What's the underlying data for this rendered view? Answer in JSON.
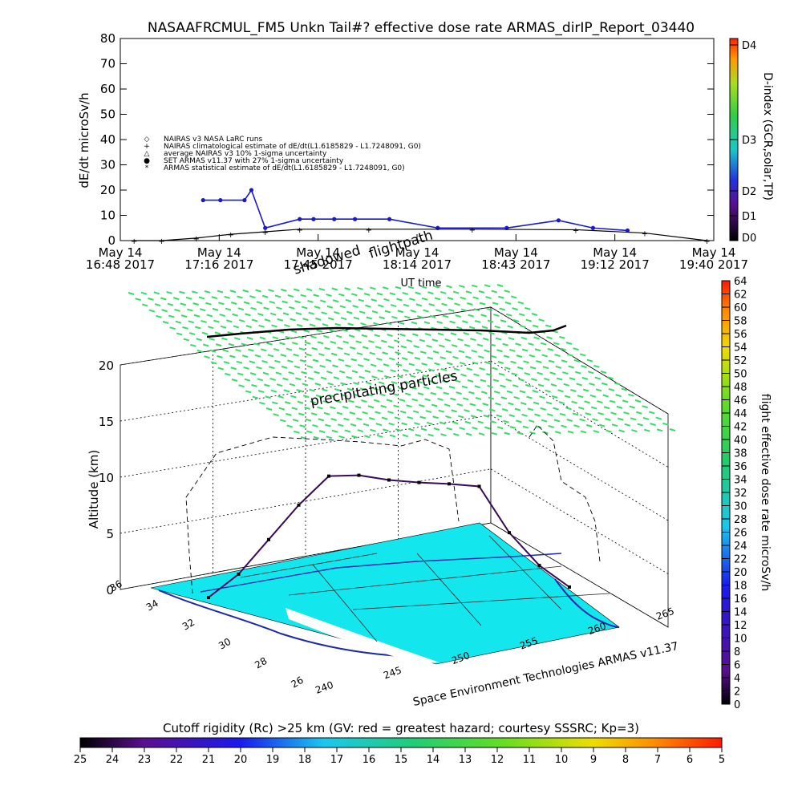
{
  "top_chart": {
    "title": "NASAAFRCMUL_FM5 Unkn Tail#? effective dose rate ARMAS_dirIP_Report_03440",
    "ylabel": "dE/dt microSv/h",
    "xlabel": "UT time",
    "y_ticks": [
      "0",
      "10",
      "20",
      "30",
      "40",
      "50",
      "60",
      "70",
      "80"
    ],
    "x_ticks": [
      {
        "l1": "May 14",
        "l2": "16:48 2017"
      },
      {
        "l1": "May 14",
        "l2": "17:16 2017"
      },
      {
        "l1": "May 14",
        "l2": "17:45 2017"
      },
      {
        "l1": "May 14",
        "l2": "18:14 2017"
      },
      {
        "l1": "May 14",
        "l2": "18:43 2017"
      },
      {
        "l1": "May 14",
        "l2": "19:12 2017"
      },
      {
        "l1": "May 14",
        "l2": "19:40 2017"
      }
    ],
    "legend": [
      {
        "symbol": "◇",
        "text": "NAIRAS v3 NASA LaRC runs"
      },
      {
        "symbol": "+",
        "text": "NAIRAS climatological estimate of dE/dt(L1.6185829 - L1.7248091, G0)"
      },
      {
        "symbol": "△",
        "text": "average NAIRAS v3 10% 1-sigma uncertainty"
      },
      {
        "symbol": "●",
        "text": "SET ARMAS v11.37 with 27% 1-sigma uncertainty"
      },
      {
        "symbol": "*",
        "text": "ARMAS statistical estimate of dE/dt(L1.6185829 - L1.7248091, G0)"
      }
    ],
    "dindex_label": "D-index (GCR,solar,TP)",
    "dindex_ticks": [
      "D0",
      "D1",
      "D2",
      "D3",
      "D4"
    ],
    "overlay_labels": [
      "shadowed",
      "flightpath"
    ],
    "colors": {
      "armas": "#1a1acc",
      "nairas": "#000000"
    }
  },
  "chart_data": [
    {
      "type": "line",
      "title": "NASAAFRCMUL_FM5 Unkn Tail#? effective dose rate ARMAS_dirIP_Report_03440",
      "xlabel": "UT time",
      "ylabel": "dE/dt microSv/h",
      "ylim": [
        0,
        80
      ],
      "x_range": [
        "16:48",
        "19:40"
      ],
      "series": [
        {
          "name": "SET ARMAS v11.37 with 27% 1-sigma uncertainty",
          "x": [
            "17:12",
            "17:17",
            "17:24",
            "17:26",
            "17:30",
            "17:40",
            "17:44",
            "17:50",
            "17:56",
            "18:06",
            "18:20",
            "18:40",
            "18:55",
            "19:05",
            "19:15"
          ],
          "values": [
            16,
            16,
            16,
            20,
            5,
            8.5,
            8.5,
            8.5,
            8.5,
            8.5,
            5,
            5,
            8,
            5,
            4
          ]
        },
        {
          "name": "NAIRAS climatological estimate of dE/dt(L1.6185829 - L1.7248091, G0)",
          "x": [
            "16:52",
            "17:00",
            "17:10",
            "17:20",
            "17:30",
            "17:40",
            "18:00",
            "18:30",
            "19:00",
            "19:20",
            "19:38"
          ],
          "values": [
            0,
            0,
            1,
            2.5,
            3.5,
            4.5,
            4.5,
            4.5,
            4.3,
            3,
            0
          ]
        }
      ]
    },
    {
      "type": "scatter",
      "title": "Space Environment Technologies ARMAS v11.37",
      "ylabel": "Altitude (km)",
      "zlim": [
        0,
        20
      ],
      "z_ticks": [
        "0",
        "5",
        "10",
        "15",
        "20"
      ],
      "lat_ticks": [
        "36",
        "34",
        "32",
        "30",
        "28",
        "26"
      ],
      "lon_ticks": [
        "240",
        "245",
        "250",
        "255",
        "260",
        "265"
      ],
      "annotations": [
        "precipitating particles"
      ],
      "flight_profile_alt_km": [
        0,
        2,
        5,
        8,
        10.5,
        10.5,
        10,
        9.7,
        9.5,
        9.2,
        5,
        2,
        0
      ]
    }
  ],
  "right_colorbar": {
    "label": "flight effective dose rate microSv/h",
    "ticks": [
      "0",
      "2",
      "4",
      "6",
      "8",
      "10",
      "12",
      "14",
      "16",
      "18",
      "20",
      "22",
      "24",
      "26",
      "28",
      "30",
      "32",
      "34",
      "36",
      "38",
      "40",
      "42",
      "44",
      "46",
      "48",
      "50",
      "52",
      "54",
      "56",
      "58",
      "60",
      "62",
      "64"
    ]
  },
  "bottom_colorbar": {
    "label": "Cutoff rigidity (Rc) >25 km (GV: red = greatest hazard; courtesy SSSRC; Kp=3)",
    "ticks": [
      "25",
      "24",
      "23",
      "22",
      "21",
      "20",
      "19",
      "18",
      "17",
      "16",
      "15",
      "14",
      "13",
      "12",
      "11",
      "10",
      "9",
      "8",
      "7",
      "6",
      "5"
    ]
  },
  "credit": "Space Environment Technologies ARMAS v11.37"
}
